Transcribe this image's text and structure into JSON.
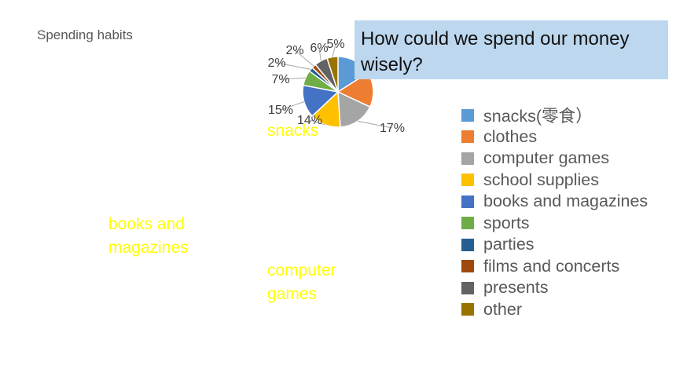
{
  "slide": {
    "title": "Spending habits"
  },
  "callout": {
    "question": "How could we spend our money wisely?"
  },
  "overlays": {
    "snacks": "snacks",
    "books": "books and\nmagazines",
    "games": "computer\ngames"
  },
  "chart_data": {
    "type": "pie",
    "title": "",
    "categories": [
      "snacks(零食）",
      "clothes",
      "computer games",
      "school supplies",
      "books and magazines",
      "sports",
      "parties",
      "films and concerts",
      "presents",
      "other"
    ],
    "values": [
      null,
      null,
      17,
      14,
      15,
      7,
      2,
      2,
      6,
      5
    ],
    "data_labels": [
      "",
      "",
      "17%",
      "14%",
      "15%",
      "7%",
      "2%",
      "2%",
      "6%",
      "5%"
    ],
    "colors": [
      "#5b9bd5",
      "#ed7d31",
      "#a5a5a5",
      "#ffc000",
      "#4472c4",
      "#70ad47",
      "#255e91",
      "#9e480e",
      "#636363",
      "#997300"
    ],
    "legend_position": "right"
  }
}
